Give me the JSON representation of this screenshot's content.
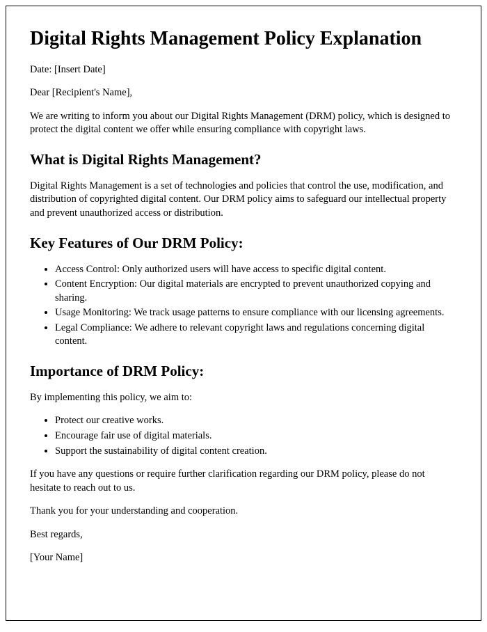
{
  "title": "Digital Rights Management Policy Explanation",
  "date_line": "Date: [Insert Date]",
  "salutation": "Dear [Recipient's Name],",
  "intro": "We are writing to inform you about our Digital Rights Management (DRM) policy, which is designed to protect the digital content we offer while ensuring compliance with copyright laws.",
  "section1": {
    "heading": "What is Digital Rights Management?",
    "body": "Digital Rights Management is a set of technologies and policies that control the use, modification, and distribution of copyrighted digital content. Our DRM policy aims to safeguard our intellectual property and prevent unauthorized access or distribution."
  },
  "section2": {
    "heading": "Key Features of Our DRM Policy:",
    "items": [
      "Access Control: Only authorized users will have access to specific digital content.",
      "Content Encryption: Our digital materials are encrypted to prevent unauthorized copying and sharing.",
      "Usage Monitoring: We track usage patterns to ensure compliance with our licensing agreements.",
      "Legal Compliance: We adhere to relevant copyright laws and regulations concerning digital content."
    ]
  },
  "section3": {
    "heading": "Importance of DRM Policy:",
    "lead": "By implementing this policy, we aim to:",
    "items": [
      "Protect our creative works.",
      "Encourage fair use of digital materials.",
      "Support the sustainability of digital content creation."
    ]
  },
  "closing1": "If you have any questions or require further clarification regarding our DRM policy, please do not hesitate to reach out to us.",
  "closing2": "Thank you for your understanding and cooperation.",
  "signoff": "Best regards,",
  "signature": "[Your Name]",
  "styles": {
    "page_border_color": "#000000",
    "background_color": "#ffffff",
    "text_color": "#000000",
    "h1_fontsize": 28,
    "h2_fontsize": 21,
    "body_fontsize": 14.5,
    "font_family": "Times New Roman"
  }
}
